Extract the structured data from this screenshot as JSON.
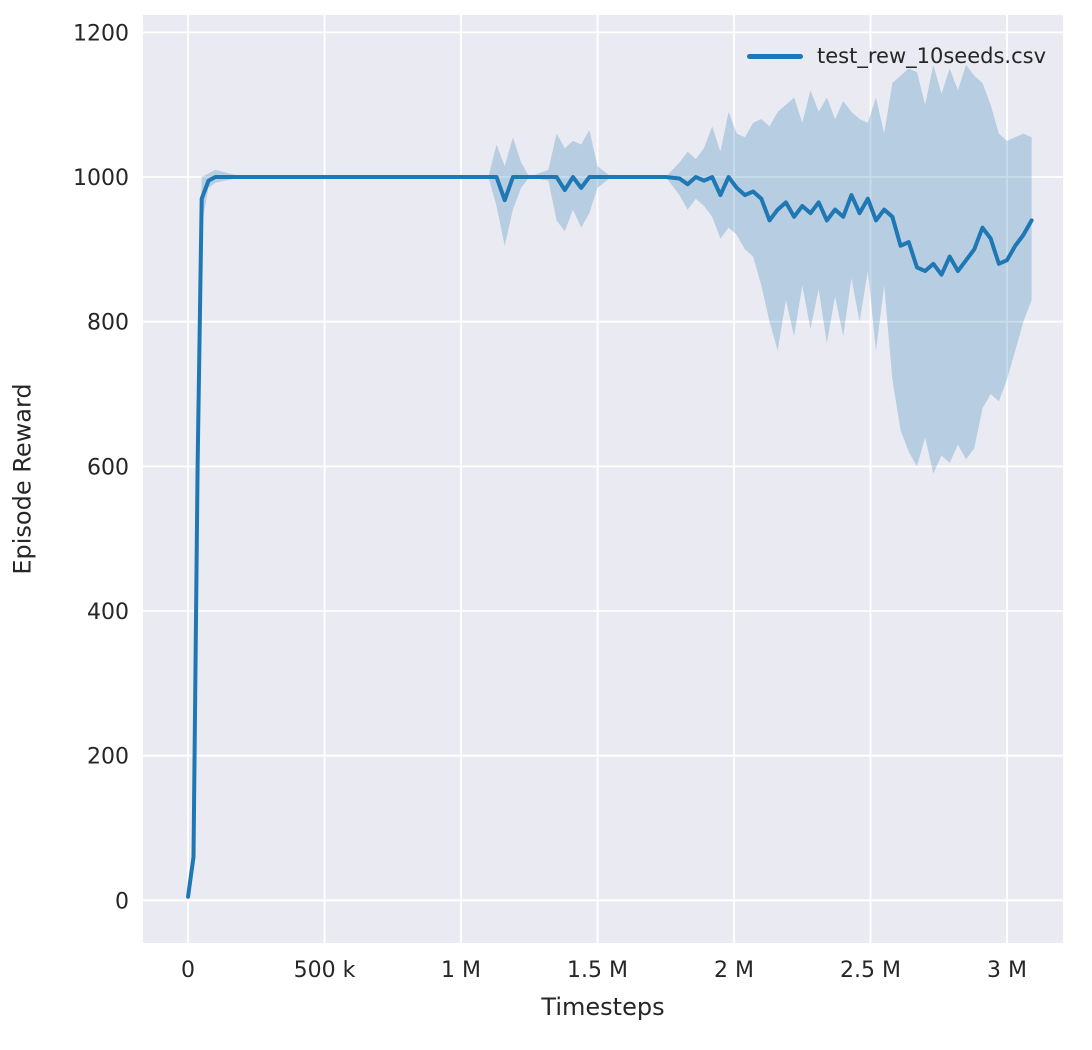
{
  "figure": {
    "background": "#ffffff",
    "plot_background": "#eaeaf2",
    "grid_color": "#ffffff",
    "text_color": "#262626"
  },
  "chart_data": {
    "type": "line",
    "title": "",
    "xlabel": "Timesteps",
    "ylabel": "Episode Reward",
    "grid": true,
    "legend_position": "upper right",
    "xlim": [
      -165000,
      3205000
    ],
    "ylim": [
      -59,
      1224
    ],
    "xticks": {
      "values": [
        0,
        500000,
        1000000,
        1500000,
        2000000,
        2500000,
        3000000
      ],
      "labels": [
        "0",
        "500 k",
        "1 M",
        "1.5 M",
        "2 M",
        "2.5 M",
        "3 M"
      ]
    },
    "yticks": {
      "values": [
        0,
        200,
        400,
        600,
        800,
        1000,
        1200
      ],
      "labels": [
        "0",
        "200",
        "400",
        "600",
        "800",
        "1000",
        "1200"
      ]
    },
    "series": [
      {
        "name": "test_rew_10seeds.csv",
        "color": "#1f77b4",
        "band_color": "#1f77b4",
        "band_opacity": 0.25,
        "x": [
          0,
          20000,
          35000,
          50000,
          75000,
          100000,
          200000,
          400000,
          600000,
          800000,
          1000000,
          1100000,
          1130000,
          1160000,
          1190000,
          1220000,
          1250000,
          1320000,
          1350000,
          1380000,
          1410000,
          1440000,
          1470000,
          1500000,
          1550000,
          1650000,
          1750000,
          1800000,
          1830000,
          1860000,
          1890000,
          1920000,
          1950000,
          1980000,
          2010000,
          2040000,
          2070000,
          2100000,
          2130000,
          2160000,
          2190000,
          2220000,
          2250000,
          2280000,
          2310000,
          2340000,
          2370000,
          2400000,
          2430000,
          2460000,
          2490000,
          2520000,
          2550000,
          2580000,
          2610000,
          2640000,
          2670000,
          2700000,
          2730000,
          2760000,
          2790000,
          2820000,
          2850000,
          2880000,
          2910000,
          2940000,
          2970000,
          3000000,
          3030000,
          3060000,
          3090000
        ],
        "mean": [
          5,
          60,
          600,
          970,
          995,
          1000,
          1000,
          1000,
          1000,
          1000,
          1000,
          1000,
          1000,
          968,
          1000,
          1000,
          1000,
          1000,
          1000,
          982,
          1000,
          985,
          1000,
          1000,
          1000,
          1000,
          1000,
          998,
          990,
          1000,
          995,
          1000,
          975,
          1000,
          985,
          975,
          980,
          970,
          940,
          955,
          965,
          945,
          960,
          950,
          965,
          940,
          955,
          945,
          975,
          950,
          970,
          940,
          955,
          945,
          905,
          910,
          875,
          870,
          880,
          865,
          890,
          870,
          885,
          900,
          930,
          915,
          880,
          885,
          905,
          920,
          940
        ],
        "lo": [
          5,
          40,
          520,
          935,
          985,
          992,
          1000,
          1000,
          1000,
          1000,
          1000,
          1000,
          960,
          905,
          955,
          985,
          1000,
          995,
          940,
          925,
          955,
          930,
          950,
          985,
          1000,
          1000,
          1000,
          975,
          955,
          970,
          960,
          945,
          915,
          930,
          920,
          900,
          890,
          850,
          800,
          760,
          830,
          780,
          850,
          790,
          845,
          770,
          835,
          780,
          860,
          800,
          870,
          760,
          850,
          720,
          650,
          620,
          600,
          640,
          590,
          615,
          605,
          630,
          610,
          625,
          680,
          700,
          690,
          720,
          760,
          800,
          830
        ],
        "hi": [
          5,
          80,
          680,
          1000,
          1005,
          1010,
          1000,
          1000,
          1000,
          1000,
          1000,
          1000,
          1045,
          1015,
          1055,
          1020,
          1000,
          1010,
          1060,
          1040,
          1050,
          1045,
          1065,
          1015,
          1000,
          1000,
          1000,
          1020,
          1035,
          1025,
          1040,
          1070,
          1035,
          1090,
          1060,
          1055,
          1075,
          1080,
          1070,
          1090,
          1100,
          1110,
          1075,
          1120,
          1090,
          1110,
          1080,
          1105,
          1090,
          1080,
          1075,
          1110,
          1060,
          1130,
          1140,
          1150,
          1145,
          1100,
          1155,
          1115,
          1150,
          1120,
          1155,
          1140,
          1130,
          1100,
          1060,
          1050,
          1055,
          1060,
          1055
        ]
      }
    ]
  }
}
